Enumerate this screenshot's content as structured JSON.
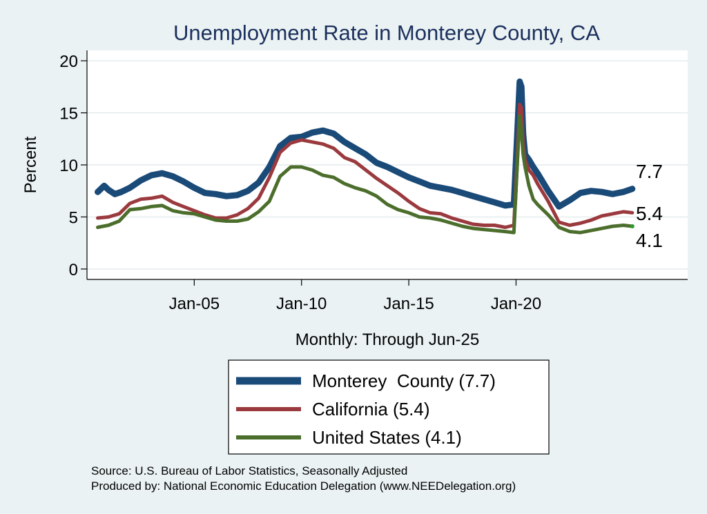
{
  "chart_data": {
    "type": "line",
    "title": "Unemployment Rate in Monterey  County, CA",
    "xlabel": "Monthly: Through Jun-25",
    "ylabel": "Percent",
    "xlim": [
      2000.0,
      2028.0
    ],
    "ylim": [
      -1,
      21
    ],
    "yticks": [
      0,
      5,
      10,
      15,
      20
    ],
    "xticks": [
      {
        "label": "Jan-05",
        "value": 2005.0
      },
      {
        "label": "Jan-10",
        "value": 2010.0
      },
      {
        "label": "Jan-15",
        "value": 2015.0
      },
      {
        "label": "Jan-20",
        "value": 2020.0
      }
    ],
    "grid": true,
    "legend_position": "bottom-center",
    "series": [
      {
        "name": "Monterey  County (7.7)",
        "end_label": "7.7",
        "color": "#1a4a78",
        "x": [
          2000.5,
          2000.8,
          2001.0,
          2001.3,
          2001.6,
          2002.0,
          2002.5,
          2003.0,
          2003.5,
          2004.0,
          2004.5,
          2005.0,
          2005.5,
          2006.0,
          2006.5,
          2007.0,
          2007.5,
          2008.0,
          2008.5,
          2009.0,
          2009.5,
          2010.0,
          2010.5,
          2011.0,
          2011.5,
          2012.0,
          2012.5,
          2013.0,
          2013.5,
          2014.0,
          2014.5,
          2015.0,
          2015.5,
          2016.0,
          2016.5,
          2017.0,
          2017.5,
          2018.0,
          2018.5,
          2019.0,
          2019.5,
          2019.9,
          2020.08,
          2020.17,
          2020.25,
          2020.33,
          2020.42,
          2020.6,
          2020.8,
          2021.0,
          2021.5,
          2022.0,
          2022.5,
          2023.0,
          2023.5,
          2024.0,
          2024.5,
          2025.0,
          2025.42
        ],
        "values": [
          7.4,
          8.0,
          7.6,
          7.2,
          7.4,
          7.8,
          8.5,
          9.0,
          9.2,
          8.9,
          8.4,
          7.8,
          7.3,
          7.2,
          7.0,
          7.1,
          7.5,
          8.3,
          9.8,
          11.8,
          12.6,
          12.7,
          13.1,
          13.3,
          13.0,
          12.2,
          11.6,
          11.0,
          10.2,
          9.8,
          9.3,
          8.8,
          8.4,
          8.0,
          7.8,
          7.6,
          7.3,
          7.0,
          6.7,
          6.4,
          6.1,
          6.2,
          14.0,
          18.0,
          17.5,
          13.0,
          11.0,
          10.5,
          9.8,
          9.2,
          7.5,
          6.0,
          6.6,
          7.3,
          7.5,
          7.4,
          7.2,
          7.4,
          7.7
        ]
      },
      {
        "name": "California (5.4)",
        "end_label": "5.4",
        "color": "#9b3a3e",
        "x": [
          2000.5,
          2001.0,
          2001.5,
          2002.0,
          2002.5,
          2003.0,
          2003.5,
          2004.0,
          2004.5,
          2005.0,
          2005.5,
          2006.0,
          2006.5,
          2007.0,
          2007.5,
          2008.0,
          2008.5,
          2009.0,
          2009.5,
          2010.0,
          2010.5,
          2011.0,
          2011.5,
          2012.0,
          2012.5,
          2013.0,
          2013.5,
          2014.0,
          2014.5,
          2015.0,
          2015.5,
          2016.0,
          2016.5,
          2017.0,
          2017.5,
          2018.0,
          2018.5,
          2019.0,
          2019.5,
          2019.9,
          2020.17,
          2020.25,
          2020.33,
          2020.42,
          2020.6,
          2020.8,
          2021.0,
          2021.5,
          2022.0,
          2022.5,
          2023.0,
          2023.5,
          2024.0,
          2024.5,
          2025.0,
          2025.42
        ],
        "values": [
          4.9,
          5.0,
          5.3,
          6.3,
          6.7,
          6.8,
          7.0,
          6.4,
          6.0,
          5.6,
          5.2,
          4.9,
          4.9,
          5.2,
          5.8,
          6.8,
          8.8,
          11.2,
          12.1,
          12.4,
          12.2,
          12.0,
          11.6,
          10.7,
          10.3,
          9.5,
          8.7,
          8.0,
          7.3,
          6.5,
          5.8,
          5.4,
          5.3,
          4.9,
          4.6,
          4.3,
          4.2,
          4.2,
          4.0,
          4.2,
          15.8,
          15.5,
          12.0,
          10.5,
          9.5,
          9.0,
          8.2,
          6.5,
          4.5,
          4.2,
          4.4,
          4.7,
          5.1,
          5.3,
          5.5,
          5.4
        ]
      },
      {
        "name": "United States (4.1)",
        "end_label": "4.1",
        "color": "#4c6e2c",
        "x": [
          2000.5,
          2001.0,
          2001.5,
          2002.0,
          2002.5,
          2003.0,
          2003.5,
          2004.0,
          2004.5,
          2005.0,
          2005.5,
          2006.0,
          2006.5,
          2007.0,
          2007.5,
          2008.0,
          2008.5,
          2009.0,
          2009.5,
          2010.0,
          2010.5,
          2011.0,
          2011.5,
          2012.0,
          2012.5,
          2013.0,
          2013.5,
          2014.0,
          2014.5,
          2015.0,
          2015.5,
          2016.0,
          2016.5,
          2017.0,
          2017.5,
          2018.0,
          2018.5,
          2019.0,
          2019.5,
          2019.9,
          2020.17,
          2020.25,
          2020.33,
          2020.42,
          2020.6,
          2020.8,
          2021.0,
          2021.5,
          2022.0,
          2022.5,
          2023.0,
          2023.5,
          2024.0,
          2024.5,
          2025.0,
          2025.42
        ],
        "values": [
          4.0,
          4.2,
          4.6,
          5.7,
          5.8,
          6.0,
          6.1,
          5.6,
          5.4,
          5.3,
          5.0,
          4.7,
          4.6,
          4.6,
          4.8,
          5.5,
          6.5,
          8.9,
          9.8,
          9.8,
          9.5,
          9.0,
          8.8,
          8.2,
          7.8,
          7.5,
          7.0,
          6.2,
          5.7,
          5.4,
          5.0,
          4.9,
          4.7,
          4.4,
          4.1,
          3.9,
          3.8,
          3.7,
          3.6,
          3.5,
          14.7,
          13.2,
          11.0,
          9.8,
          8.0,
          6.7,
          6.2,
          5.2,
          4.0,
          3.6,
          3.5,
          3.7,
          3.9,
          4.1,
          4.2,
          4.1
        ]
      }
    ]
  },
  "footer": {
    "source": "Source: U.S. Bureau of Labor Statistics, Seasonally Adjusted",
    "producer": "Produced by: National Economic Education Delegation (www.NEEDelegation.org)"
  }
}
